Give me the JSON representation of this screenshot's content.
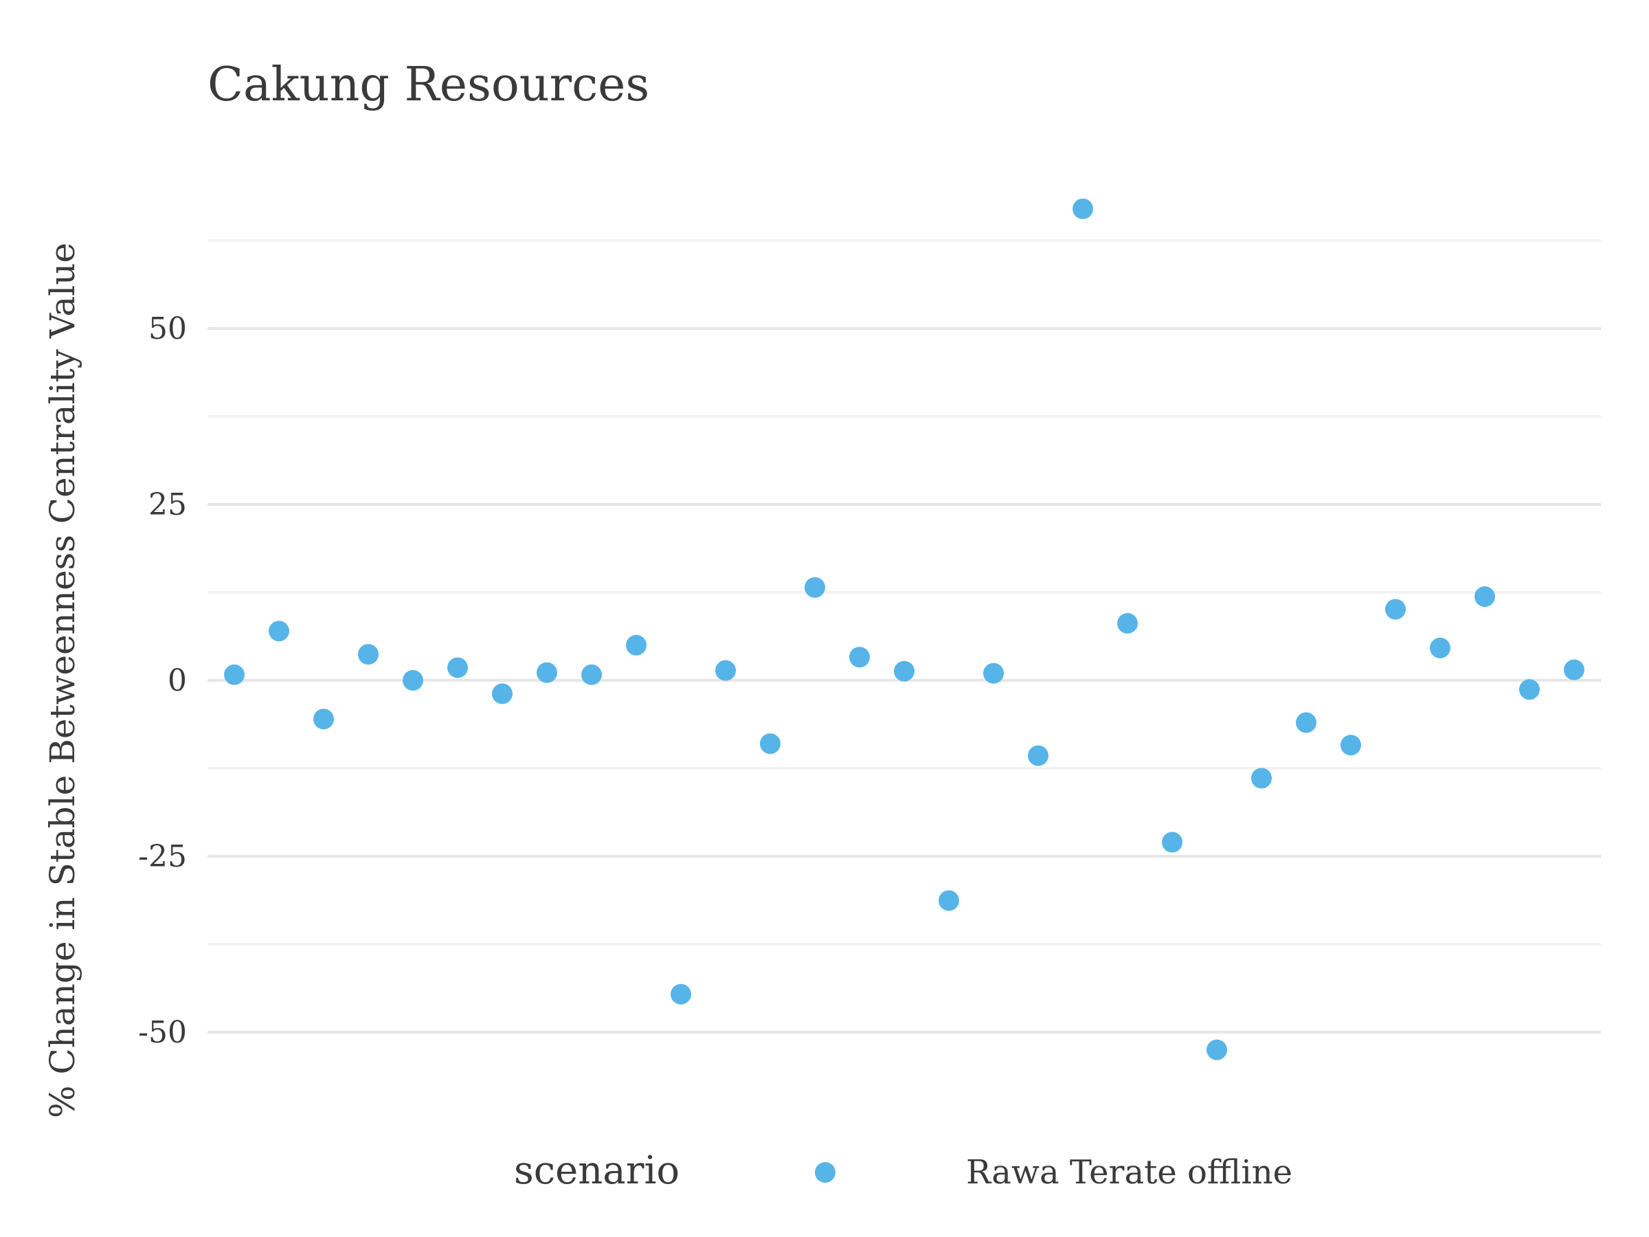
{
  "chart_data": {
    "type": "scatter",
    "title": "Cakung Resources",
    "xlabel": "",
    "ylabel": "% Change in Stable Betweenness Centrality Value",
    "ylim": [
      -56.5,
      75
    ],
    "y_major_ticks": [
      -50,
      -25,
      0,
      25,
      50
    ],
    "y_minor_ticks": [
      -37.5,
      -12.5,
      12.5,
      37.5,
      62.5
    ],
    "y_tick_labels": [
      "-50",
      "-25",
      "0",
      "25",
      "50"
    ],
    "grid": true,
    "legend": {
      "position": "bottom",
      "title": "scenario",
      "entries": [
        "Rawa Terate offline"
      ]
    },
    "colors": {
      "point": "#56b4e9",
      "text": "#3a3a3a",
      "grid_major": "#e6e6e6",
      "grid_minor": "#f3f3f3"
    },
    "series": [
      {
        "name": "Rawa Terate offline",
        "values": [
          0.8,
          7.0,
          -5.5,
          3.7,
          0.0,
          1.8,
          -1.9,
          1.1,
          0.8,
          5.0,
          -44.6,
          1.4,
          -9.0,
          13.2,
          3.3,
          1.3,
          -31.3,
          1.0,
          -10.7,
          67.0,
          8.1,
          -23.0,
          -52.5,
          -13.9,
          -6.0,
          -9.2,
          10.1,
          4.6,
          11.9,
          -1.3,
          1.5
        ]
      }
    ]
  }
}
